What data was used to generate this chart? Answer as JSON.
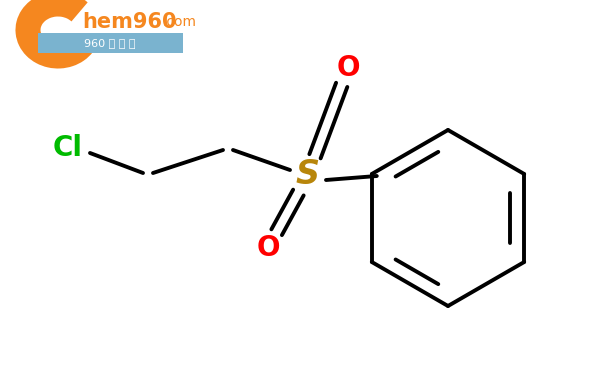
{
  "background_color": "#ffffff",
  "bond_color": "#000000",
  "bond_width": 2.8,
  "cl_color": "#00bb00",
  "s_color": "#b8860b",
  "o_color": "#ff0000",
  "cl_label": "Cl",
  "s_label": "S",
  "o1_label": "O",
  "o2_label": "O",
  "cl_fontsize": 20,
  "s_fontsize": 24,
  "o_fontsize": 20,
  "figsize": [
    6.05,
    3.75
  ],
  "dpi": 100,
  "logo_orange": "#f5871f",
  "logo_blue": "#7ab3cf",
  "logo_text_color": "#f5871f",
  "logo_sub_color": "#ffffff"
}
